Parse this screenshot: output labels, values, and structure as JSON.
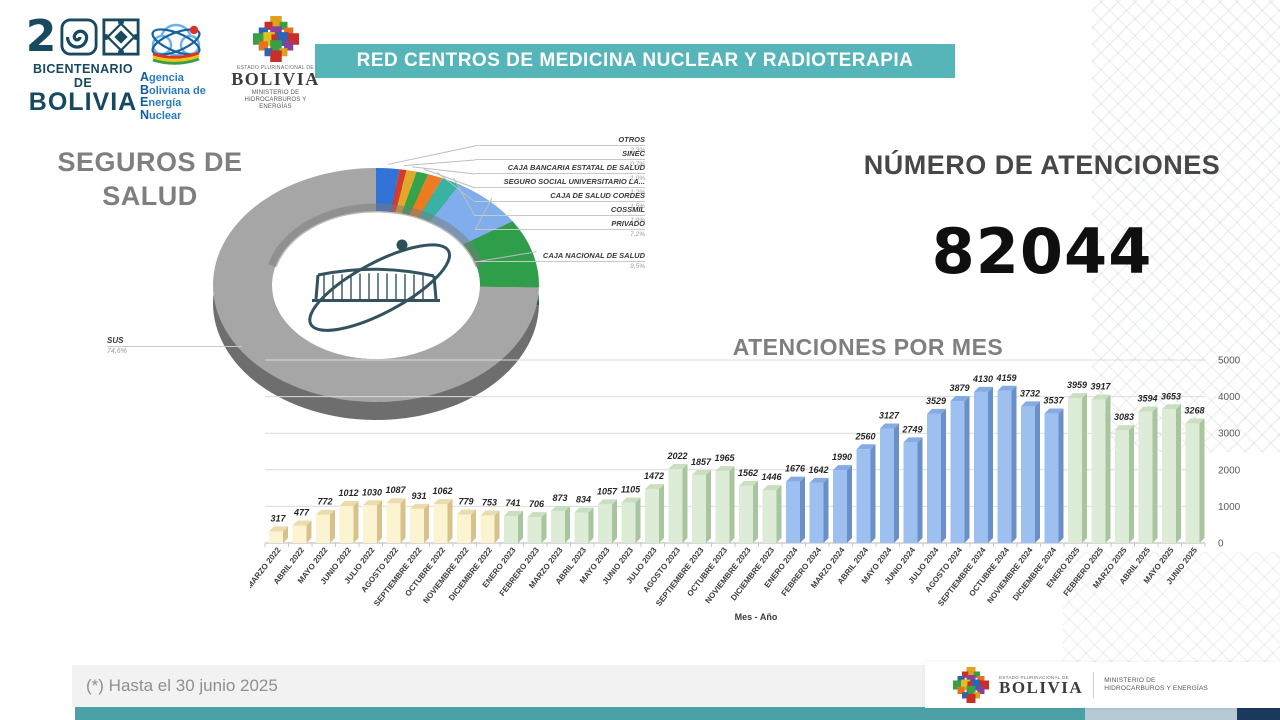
{
  "banner": {
    "title": "RED CENTROS DE MEDICINA NUCLEAR Y RADIOTERAPIA"
  },
  "header_logos": {
    "bicentenario": {
      "number": "2",
      "line1": "BICENTENARIO DE",
      "line2": "BOLIVIA"
    },
    "aben": {
      "lines": [
        "Agencia",
        "Boliviana de",
        "Energía",
        "Nuclear"
      ]
    },
    "ministry": {
      "small": "ESTADO PLURINACIONAL DE",
      "name": "BOLIVIA",
      "dept1": "MINISTERIO DE",
      "dept2": "HIDROCARBUROS Y ENERGÍAS"
    }
  },
  "pie_section": {
    "title_line1": "SEGUROS DE",
    "title_line2": "SALUD"
  },
  "atenciones": {
    "title": "NÚMERO DE ATENCIONES",
    "total": "82044"
  },
  "bars_section": {
    "title": "ATENCIONES POR MES",
    "xlabel": "Mes - Año"
  },
  "footer": {
    "note": "(*) Hasta el 30 junio 2025",
    "ministry": {
      "small": "ESTADO PLURINACIONAL DE",
      "name": "BOLIVIA",
      "dept1": "MINISTERIO DE",
      "dept2": "HIDROCARBUROS Y ENERGÍAS"
    }
  },
  "chart_data": [
    {
      "type": "pie",
      "title": "SEGUROS DE SALUD",
      "legend_position": "callout-labels",
      "slices": [
        {
          "label": "OTROS",
          "pct": "2,3%",
          "value": 2.3,
          "color": "#3273d8"
        },
        {
          "label": "SINEC",
          "pct": "0,7%",
          "value": 0.7,
          "color": "#d23b30"
        },
        {
          "label": "CAJA BANCARIA ESTATAL DE SALUD",
          "pct": "1,0%",
          "value": 1.0,
          "color": "#e3a82a"
        },
        {
          "label": "SEGURO SOCIAL UNIVERSITARIO LA...",
          "pct": "1,2%",
          "value": 1.2,
          "color": "#35a349"
        },
        {
          "label": "CAJA DE SALUD CORDES",
          "pct": "1,5%",
          "value": 1.5,
          "color": "#ec7c21"
        },
        {
          "label": "COSSMIL",
          "pct": "1,9%",
          "value": 1.9,
          "color": "#38b2a3"
        },
        {
          "label": "PRIVADO",
          "pct": "7,2%",
          "value": 7.2,
          "color": "#80aeec"
        },
        {
          "label": "CAJA NACIONAL DE SALUD",
          "pct": "9,5%",
          "value": 9.5,
          "color": "#2f9e4a"
        },
        {
          "label": "SUS",
          "pct": "74,6%",
          "value": 74.6,
          "color": "#a6a6a6"
        }
      ]
    },
    {
      "type": "bar",
      "title": "ATENCIONES POR MES",
      "xlabel": "Mes - Año",
      "ylabel": "",
      "ylim": [
        0,
        5000
      ],
      "yticks": [
        0,
        1000,
        2000,
        3000,
        4000,
        5000
      ],
      "grid": true,
      "yaxis_side": "right",
      "categories": [
        "MARZO 2022",
        "ABRIL 2022",
        "MAYO 2022",
        "JUNIO 2022",
        "JULIO 2022",
        "AGOSTO 2022",
        "SEPTIEMBRE 2022",
        "OCTUBRE 2022",
        "NOVIEMBRE 2022",
        "DICIEMBRE 2022",
        "ENERO 2023",
        "FEBRERO 2023",
        "MARZO 2023",
        "ABRIL 2023",
        "MAYO 2023",
        "JUNIO 2023",
        "JULIO 2023",
        "AGOSTO 2023",
        "SEPTIEMBRE 2023",
        "OCTUBRE 2023",
        "NOVIEMBRE 2023",
        "DICIEMBRE 2023",
        "ENERO 2024",
        "FEBRERO 2024",
        "MARZO 2024",
        "ABRIL 2024",
        "MAYO 2024",
        "JUNIO 2024",
        "JULIO 2024",
        "AGOSTO 2024",
        "SEPTIEMBRE 2024",
        "OCTUBRE 2024",
        "NOVIEMBRE 2024",
        "DICIEMBRE 2024",
        "ENERO 2025",
        "FEBRERO 2025",
        "MARZO 2025",
        "ABRIL 2025",
        "MAYO 2025",
        "JUNIO 2025"
      ],
      "values": [
        317,
        477,
        772,
        1012,
        1030,
        1087,
        931,
        1062,
        779,
        753,
        741,
        706,
        873,
        834,
        1057,
        1105,
        1472,
        2022,
        1857,
        1965,
        1562,
        1446,
        1676,
        1642,
        1990,
        2560,
        3127,
        2749,
        3529,
        3879,
        4130,
        4159,
        3732,
        3537,
        3959,
        3917,
        3083,
        3594,
        3653,
        3268
      ],
      "year_styles": {
        "2022": {
          "face": "#fcf3d1",
          "side": "#d8c28c",
          "top": "#ebdcae"
        },
        "2023": {
          "face": "#ddecd6",
          "side": "#a8c5a0",
          "top": "#c9dfc0"
        },
        "2024": {
          "face": "#9ec0f0",
          "side": "#6b90c8",
          "top": "#85abe2"
        },
        "2025": {
          "face": "#ddecd6",
          "side": "#a8c5a0",
          "top": "#c9dfc0"
        }
      }
    }
  ]
}
